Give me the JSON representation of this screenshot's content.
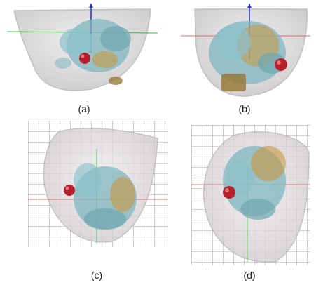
{
  "figure": {
    "panels": [
      {
        "id": "a",
        "caption": "(a)"
      },
      {
        "id": "b",
        "caption": "(b)"
      },
      {
        "id": "c",
        "caption": "(c)"
      },
      {
        "id": "d",
        "caption": "(d)"
      }
    ],
    "colors": {
      "shell_fill": "#d9d6d8",
      "shell_edge": "#b9b4b8",
      "tissue_cyan": "#7fb6bf",
      "tissue_orange": "#c8973f",
      "sphere_red": "#b5202a",
      "axis_blue": "#2233cc",
      "axis_green": "#33bb33",
      "axis_red": "#dd4444",
      "grid": "#555555"
    }
  }
}
